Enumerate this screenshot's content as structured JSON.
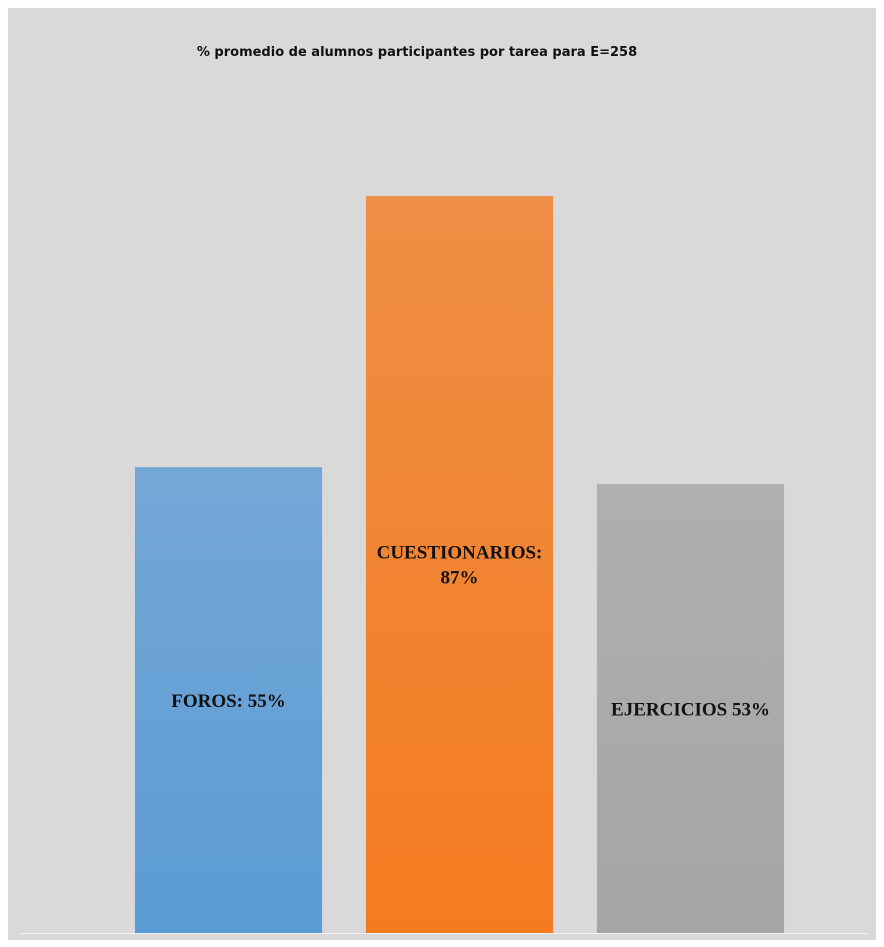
{
  "chart_data": {
    "type": "bar",
    "title": "% promedio de alumnos participantes por tarea para E=258",
    "categories": [
      null,
      null,
      null
    ],
    "values": [
      55,
      87,
      53
    ],
    "value_labels": [
      "FOROS: 55%",
      "CUESTIONARIOS: 87%",
      "EJERCICIOS 53%"
    ],
    "colors": [
      "#5b9bd5",
      "#f47b20",
      "#a5a5a5"
    ],
    "ylim": [
      0,
      100
    ]
  }
}
